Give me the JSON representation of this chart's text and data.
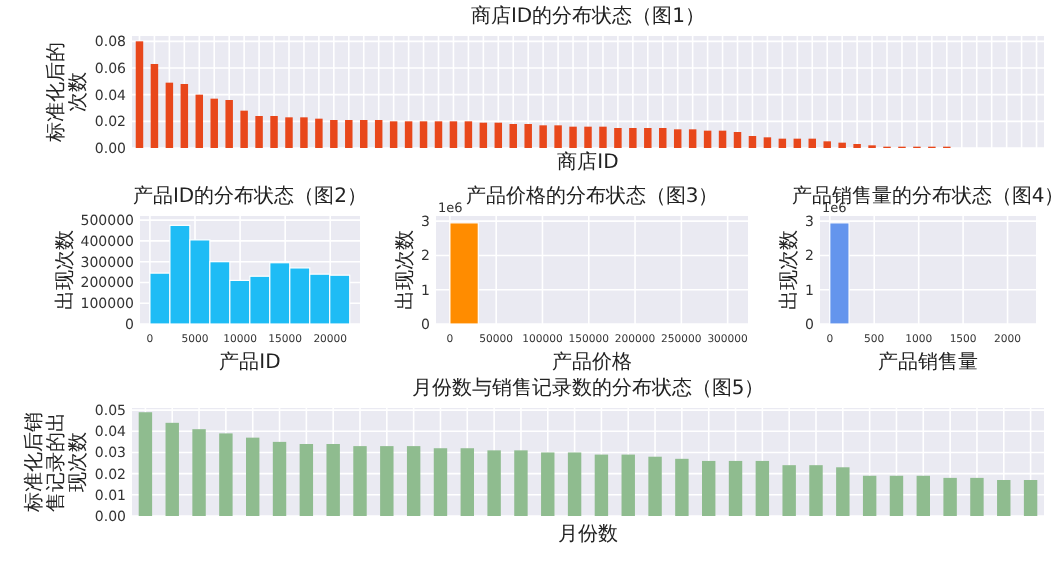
{
  "chart_data": [
    {
      "type": "bar",
      "title": "商店ID的分布状态（图1）",
      "xlabel": "商店ID",
      "ylabel": "标准化后的次数",
      "color": "#e8471b",
      "grid": true,
      "categories": [
        null,
        null,
        null,
        null,
        null,
        null,
        null,
        null,
        null,
        null,
        null,
        null,
        null,
        null,
        null,
        null,
        null,
        null,
        null,
        null,
        null,
        null,
        null,
        null,
        null,
        null,
        null,
        null,
        null,
        null,
        null,
        null,
        null,
        null,
        null,
        null,
        null,
        null,
        null,
        null,
        null,
        null,
        null,
        null,
        null,
        null,
        null,
        null,
        null,
        null,
        null,
        null,
        null,
        null,
        null,
        null,
        null,
        null,
        null,
        null,
        null
      ],
      "values": [
        0.08,
        0.063,
        0.049,
        0.048,
        0.04,
        0.037,
        0.036,
        0.028,
        0.024,
        0.024,
        0.023,
        0.023,
        0.022,
        0.021,
        0.021,
        0.021,
        0.021,
        0.02,
        0.02,
        0.02,
        0.02,
        0.02,
        0.02,
        0.019,
        0.019,
        0.018,
        0.018,
        0.017,
        0.017,
        0.016,
        0.016,
        0.016,
        0.015,
        0.015,
        0.015,
        0.015,
        0.014,
        0.014,
        0.013,
        0.013,
        0.012,
        0.009,
        0.008,
        0.007,
        0.007,
        0.007,
        0.005,
        0.004,
        0.003,
        0.002,
        0.001,
        0.001,
        0.001,
        0.001,
        0.001,
        0,
        0,
        0,
        0,
        0,
        0
      ],
      "ylim": [
        0,
        0.084
      ],
      "yticks": [
        {
          "value": 0,
          "label": "0.00"
        },
        {
          "value": 0.02,
          "label": "0.02"
        },
        {
          "value": 0.04,
          "label": "0.04"
        },
        {
          "value": 0.06,
          "label": "0.06"
        },
        {
          "value": 0.08,
          "label": "0.08"
        }
      ]
    },
    {
      "type": "histogram",
      "title": "产品ID的分布状态（图2）",
      "xlabel": "产品ID",
      "ylabel": "出现次数",
      "color": "#1ebcf5",
      "grid": true,
      "bins": [
        0,
        2216,
        4432,
        6648,
        8864,
        11080,
        13296,
        15512,
        17728,
        19944,
        22160
      ],
      "values": [
        245000,
        475000,
        405000,
        300000,
        210000,
        230000,
        295000,
        270000,
        240000,
        235000
      ],
      "xlim": [
        -1100,
        23300
      ],
      "xticks": [
        0,
        5000,
        10000,
        15000,
        20000
      ],
      "ylim": [
        0,
        520000
      ],
      "yticks": [
        0,
        100000,
        200000,
        300000,
        400000,
        500000
      ]
    },
    {
      "type": "histogram",
      "title": "产品价格的分布状态（图3）",
      "xlabel": "产品价格",
      "ylabel": "出现次数",
      "color": "#ff8c00",
      "grid": true,
      "annotations": [
        "1e6"
      ],
      "bins": [
        0,
        30700,
        61400,
        92100,
        122800,
        153500,
        184200,
        214900,
        245600,
        276300,
        307000
      ],
      "values": [
        2.95,
        0,
        0,
        0,
        0,
        0,
        0,
        0,
        0,
        0
      ],
      "xlim": [
        -15000,
        322000
      ],
      "xticks": [
        0,
        50000,
        100000,
        150000,
        200000,
        250000,
        300000
      ],
      "ylim": [
        0,
        3.15
      ],
      "yticks": [
        0,
        1,
        2,
        3
      ]
    },
    {
      "type": "histogram",
      "title": "产品销售量的分布状态（图4）",
      "xlabel": "产品销售量",
      "ylabel": "出现次数",
      "color": "#6495ed",
      "grid": true,
      "annotations": [
        "1e6"
      ],
      "bins": [
        0,
        217,
        434,
        651,
        868,
        1085,
        1302,
        1519,
        1736,
        1953,
        2170
      ],
      "values": [
        2.95,
        0,
        0,
        0,
        0,
        0,
        0,
        0,
        0,
        0
      ],
      "xlim": [
        -110,
        2320
      ],
      "xticks": [
        0,
        500,
        1000,
        1500,
        2000
      ],
      "ylim": [
        0,
        3.15
      ],
      "yticks": [
        0,
        1,
        2,
        3
      ]
    },
    {
      "type": "bar",
      "title": "月份数与销售记录数的分布状态（图5）",
      "xlabel": "月份数",
      "ylabel": "标准化后销售记录的出现次数",
      "color": "#8fbc8f",
      "grid": true,
      "categories": [
        null,
        null,
        null,
        null,
        null,
        null,
        null,
        null,
        null,
        null,
        null,
        null,
        null,
        null,
        null,
        null,
        null,
        null,
        null,
        null,
        null,
        null,
        null,
        null,
        null,
        null,
        null,
        null,
        null,
        null,
        null,
        null,
        null,
        null
      ],
      "values": [
        0.049,
        0.044,
        0.041,
        0.039,
        0.037,
        0.035,
        0.034,
        0.034,
        0.033,
        0.033,
        0.033,
        0.032,
        0.032,
        0.031,
        0.031,
        0.03,
        0.03,
        0.029,
        0.029,
        0.028,
        0.027,
        0.026,
        0.026,
        0.026,
        0.024,
        0.024,
        0.023,
        0.019,
        0.019,
        0.019,
        0.018,
        0.018,
        0.017,
        0.017
      ],
      "ylim": [
        0,
        0.051
      ],
      "yticks": [
        {
          "value": 0,
          "label": "0.00"
        },
        {
          "value": 0.01,
          "label": "0.01"
        },
        {
          "value": 0.02,
          "label": "0.02"
        },
        {
          "value": 0.03,
          "label": "0.03"
        },
        {
          "value": 0.04,
          "label": "0.04"
        },
        {
          "value": 0.05,
          "label": "0.05"
        }
      ]
    }
  ]
}
